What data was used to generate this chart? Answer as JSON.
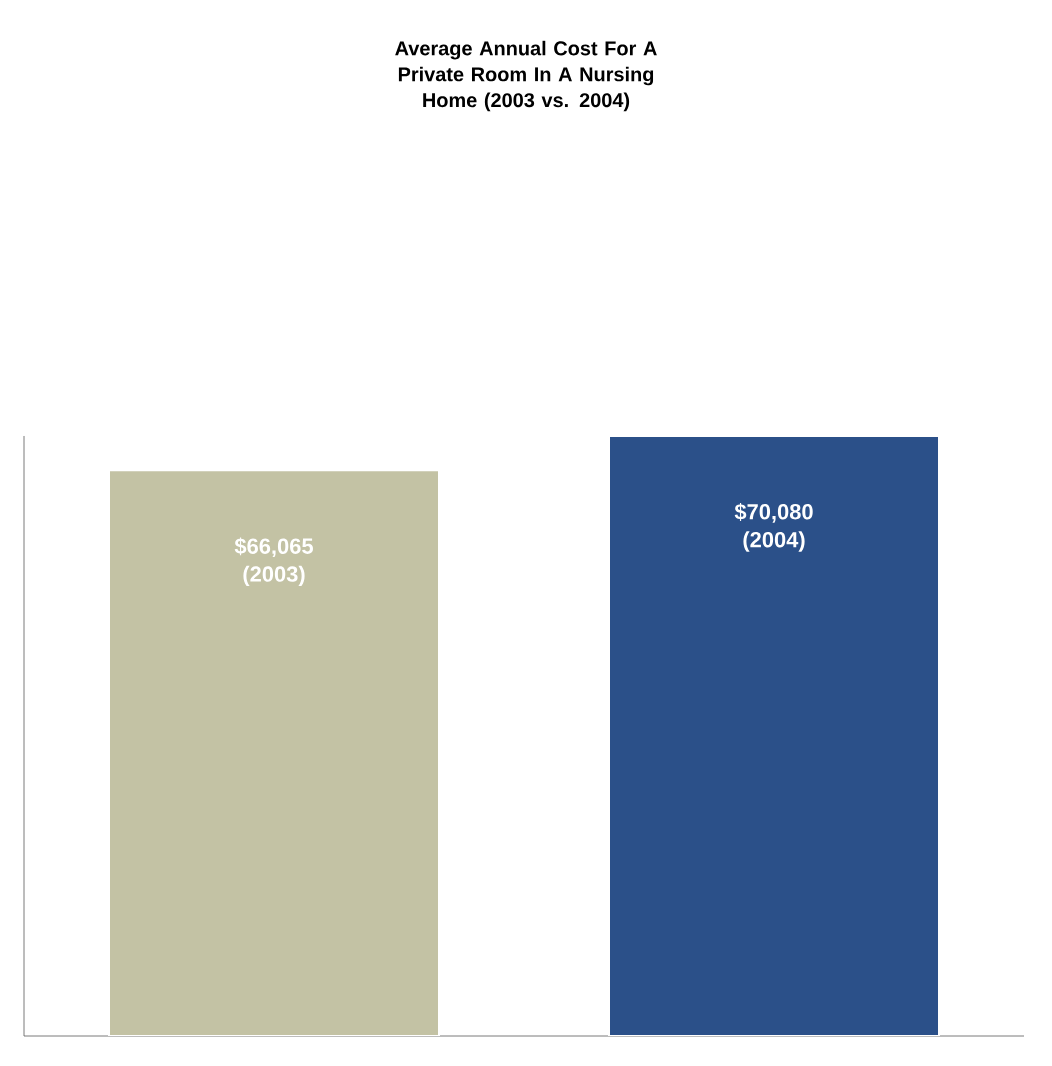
{
  "chart_data": {
    "type": "bar",
    "title": "Average Annual Cost For A Private Room In A Nursing Home (2003 vs. 2004)",
    "categories": [
      "(2003)",
      "(2004)"
    ],
    "values": [
      66065,
      70080
    ],
    "colors": [
      "#c3c2a4",
      "#2b5089"
    ],
    "value_labels": [
      "$66,065",
      "$70,080"
    ]
  }
}
